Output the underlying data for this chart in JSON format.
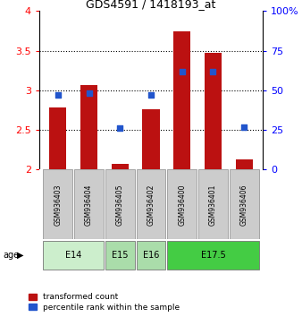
{
  "title": "GDS4591 / 1418193_at",
  "samples": [
    "GSM936403",
    "GSM936404",
    "GSM936405",
    "GSM936402",
    "GSM936400",
    "GSM936401",
    "GSM936406"
  ],
  "transformed_count": [
    2.78,
    3.07,
    2.07,
    2.76,
    3.74,
    3.47,
    2.13
  ],
  "percentile_rank": [
    47,
    48,
    26,
    47,
    62,
    62,
    27
  ],
  "ylim_left": [
    2.0,
    4.0
  ],
  "ylim_right": [
    0,
    100
  ],
  "yticks_left": [
    2.0,
    2.5,
    3.0,
    3.5,
    4.0
  ],
  "yticks_right": [
    0,
    25,
    50,
    75,
    100
  ],
  "bar_color": "#bb1111",
  "dot_color": "#2255cc",
  "age_groups": [
    {
      "label": "E14",
      "samples": [
        "GSM936403",
        "GSM936404"
      ],
      "color": "#cceecc"
    },
    {
      "label": "E15",
      "samples": [
        "GSM936405"
      ],
      "color": "#aaddaa"
    },
    {
      "label": "E16",
      "samples": [
        "GSM936402"
      ],
      "color": "#aaddaa"
    },
    {
      "label": "E17.5",
      "samples": [
        "GSM936400",
        "GSM936401",
        "GSM936406"
      ],
      "color": "#44cc44"
    }
  ],
  "sample_box_color": "#cccccc",
  "legend_red_label": "transformed count",
  "legend_blue_label": "percentile rank within the sample",
  "bar_bottom": 2.0,
  "bar_width": 0.55,
  "left_label_color": "red",
  "right_label_color": "blue"
}
